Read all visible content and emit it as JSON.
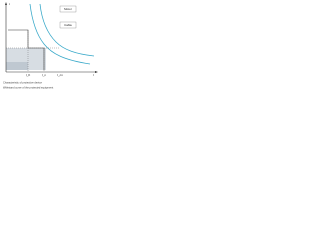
{
  "diagram": {
    "axis_y": "t",
    "axis_x": "I",
    "labels": [
      "I_K",
      "I_n",
      "I_cn"
    ],
    "boxes": [
      "Motor",
      "Cable"
    ],
    "footnote": [
      "Characteristic of protective device",
      "Withstand curve of the protected equipment"
    ]
  }
}
